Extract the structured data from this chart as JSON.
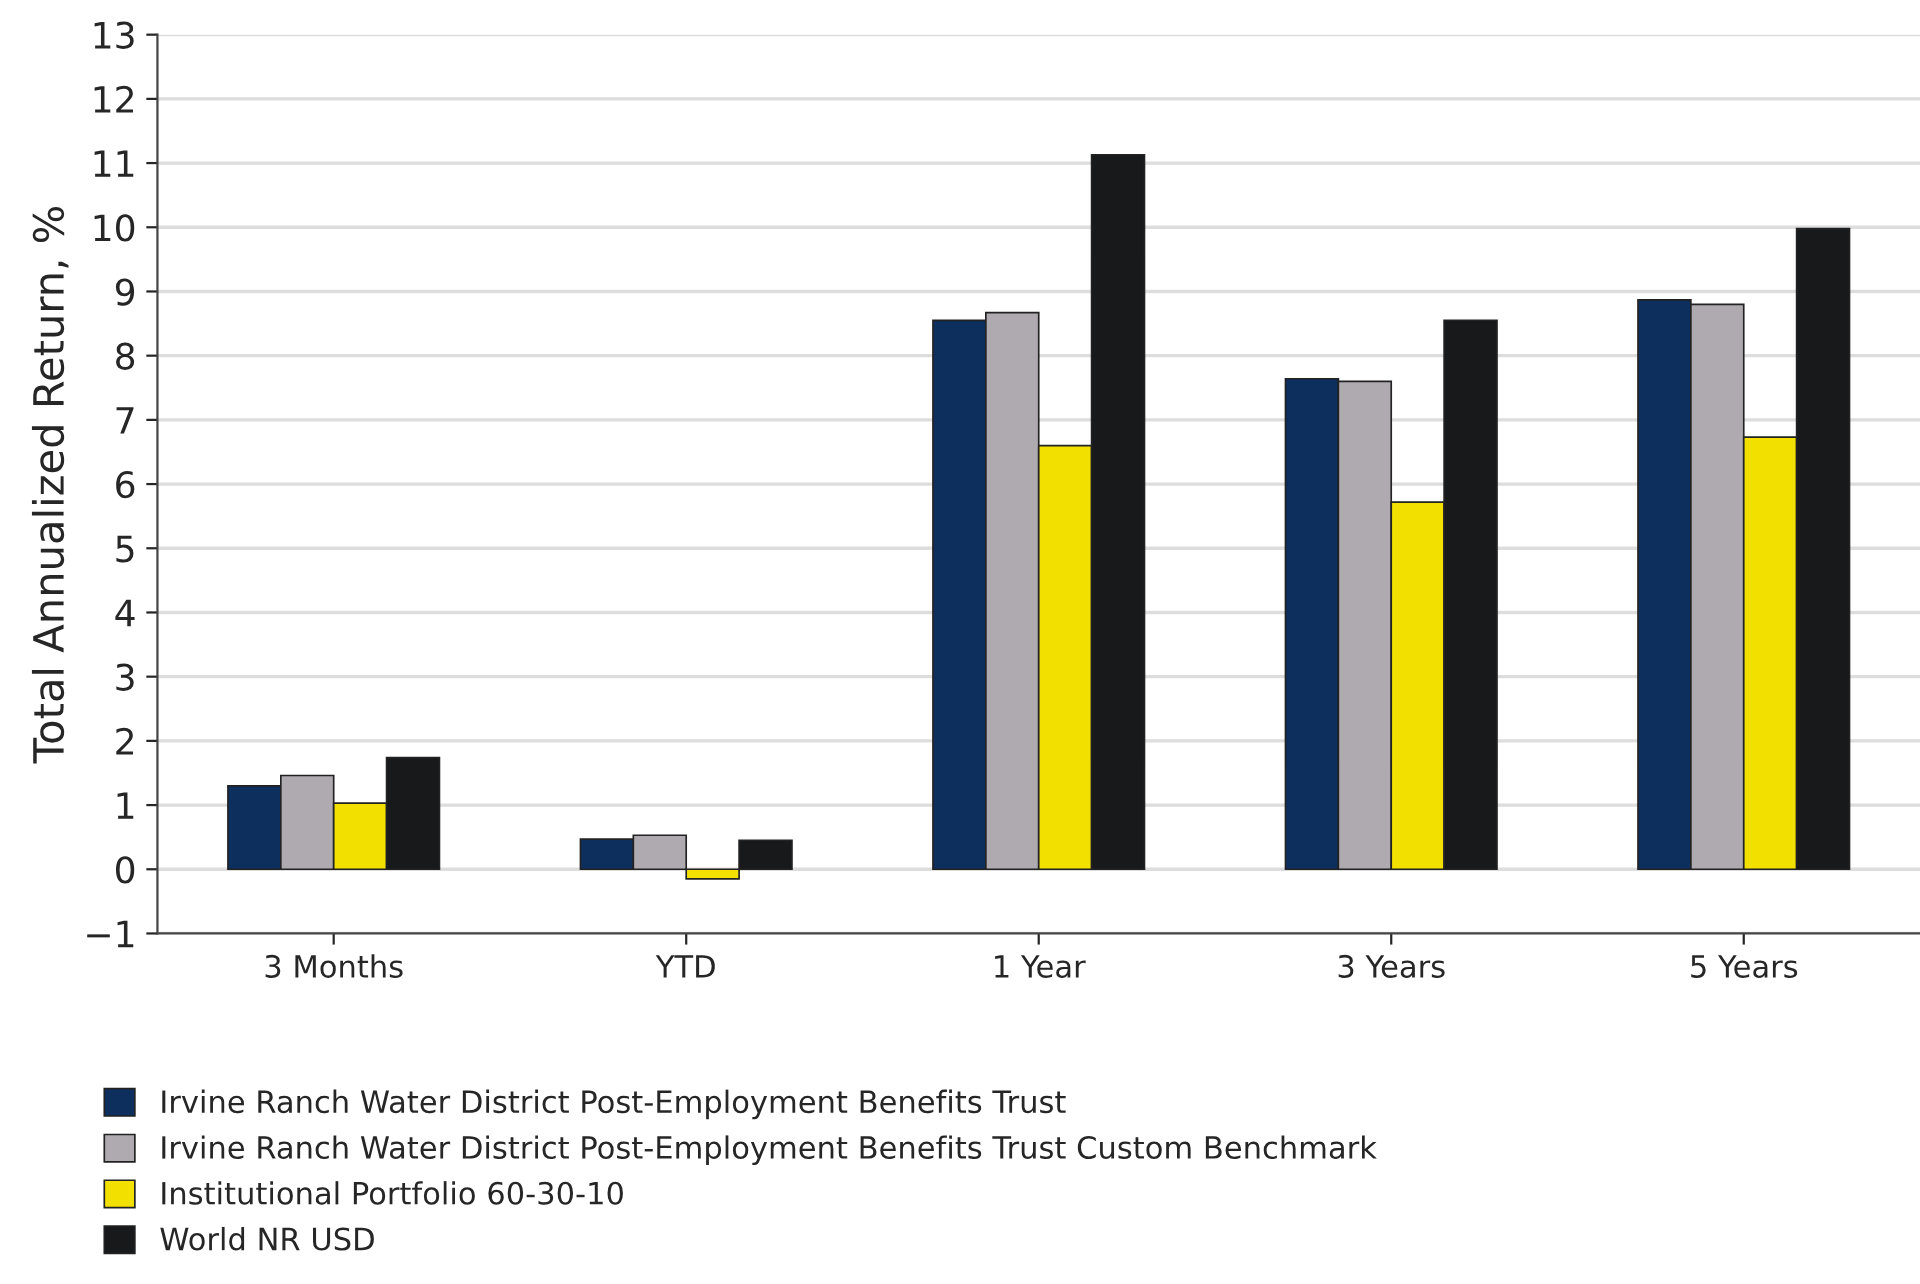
{
  "chart_data": {
    "type": "bar",
    "ylabel": "Total Annualized Return, %",
    "categories": [
      "3 Months",
      "YTD",
      "1 Year",
      "3 Years",
      "5 Years"
    ],
    "series": [
      {
        "name": "Irvine Ranch Water District Post-Employment Benefits Trust",
        "color": "#0d2f5e",
        "values": [
          1.3,
          0.47,
          8.55,
          7.64,
          8.87
        ]
      },
      {
        "name": "Irvine Ranch Water District Post-Employment Benefits Trust Custom Benchmark",
        "color": "#aeaab0",
        "values": [
          1.46,
          0.53,
          8.67,
          7.6,
          8.8
        ]
      },
      {
        "name": "Institutional Portfolio 60-30-10",
        "color": "#f2e000",
        "values": [
          1.03,
          -0.15,
          6.6,
          5.72,
          6.73
        ]
      },
      {
        "name": "World NR USD",
        "color": "#17191b",
        "values": [
          1.74,
          0.45,
          11.13,
          8.55,
          9.98
        ]
      }
    ],
    "ylim": [
      -1,
      13
    ],
    "yticks": [
      {
        "value": -1,
        "label": "−1"
      },
      0,
      1,
      2,
      3,
      4,
      5,
      6,
      7,
      8,
      9,
      10,
      11,
      12,
      13
    ],
    "grid": "y",
    "legend": "bottom left"
  }
}
